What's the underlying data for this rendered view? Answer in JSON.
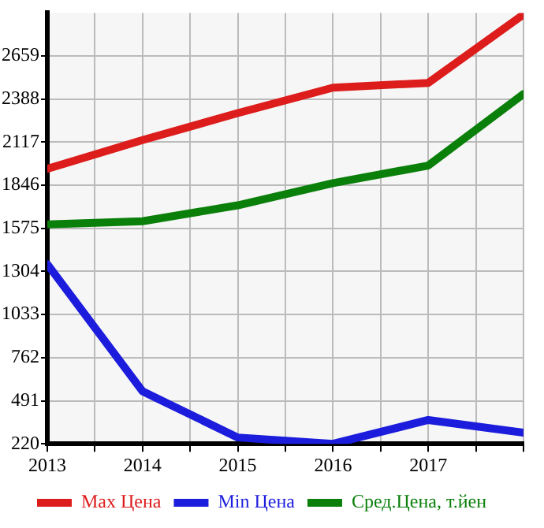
{
  "chart_data": {
    "type": "line",
    "x": [
      2013,
      2014,
      2015,
      2016,
      2017,
      2018
    ],
    "series": [
      {
        "name": "Max Цена",
        "color": "#dd1c1c",
        "values": [
          1950,
          2130,
          2300,
          2460,
          2490,
          2920
        ]
      },
      {
        "name": "Min Цена",
        "color": "#1c1cdd",
        "values": [
          1350,
          550,
          260,
          220,
          370,
          290
        ]
      },
      {
        "name": "Сред.Цена, т.йен",
        "color": "#0a7f0a",
        "values": [
          1600,
          1620,
          1720,
          1860,
          1970,
          2420
        ]
      }
    ],
    "xlim": [
      2013,
      2018
    ],
    "xticks": [
      2013,
      {
        "value": 2013.5,
        "label": null
      },
      2014,
      {
        "value": 2014.5,
        "label": null
      },
      2015,
      {
        "value": 2015.5,
        "label": null
      },
      2016,
      {
        "value": 2016.5,
        "label": null
      },
      2017,
      {
        "value": 2017.5,
        "label": null
      },
      {
        "value": 2018,
        "label": null
      }
    ],
    "ylim": [
      220,
      2930
    ],
    "yticks": [
      220,
      491,
      762,
      1033,
      1304,
      1575,
      1846,
      2117,
      2388,
      2659
    ],
    "grid": true,
    "legend": "bottom",
    "marker": "none",
    "line_style": "solid"
  }
}
